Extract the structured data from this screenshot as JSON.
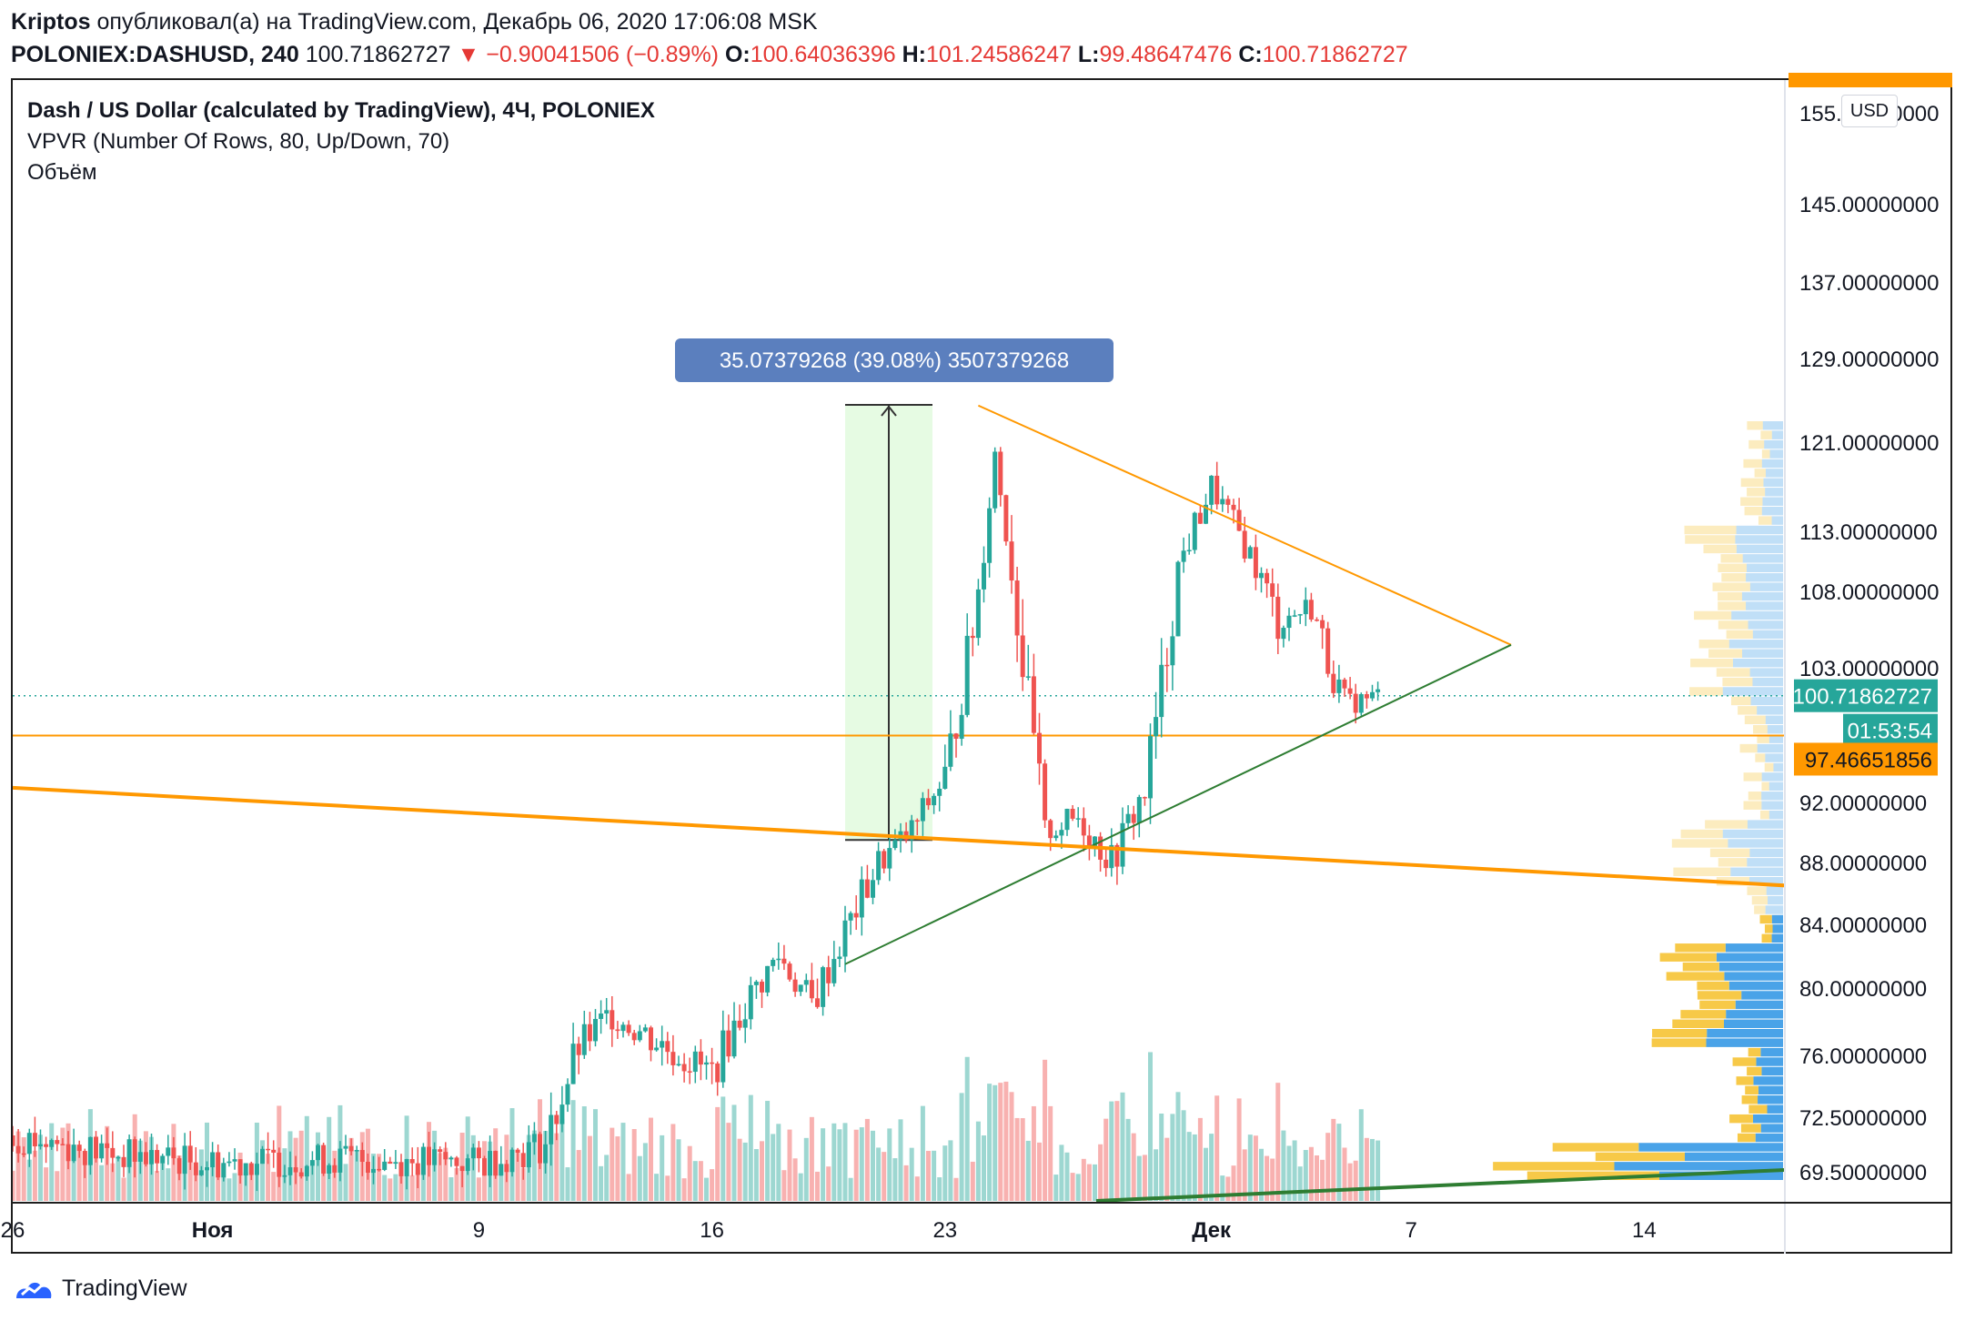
{
  "header": {
    "author": "Kriptos",
    "published_text": "опубликовал(а) на TradingView.com, Декабрь 06, 2020 17:06:08 MSK",
    "symbol": "POLONIEX:DASHUSD, 240",
    "price": "100.71862727",
    "change": "−0.90041506 (−0.89%)",
    "o_label": "O:",
    "o_value": "100.64036396",
    "h_label": "H:",
    "h_value": "101.24586247",
    "l_label": "L:",
    "l_value": "99.48647476",
    "c_label": "C:",
    "c_value": "100.71862727"
  },
  "legend": {
    "line1": "Dash / US Dollar (calculated by TradingView), 4Ч, POLONIEX",
    "line2": "VPVR (Number Of Rows, 80, Up/Down, 70)",
    "line3": "Объём"
  },
  "currency_button": "USD",
  "measure_label": "35.07379268 (39.08%) 3507379268",
  "price_badges": {
    "last_price": "100.71862727",
    "countdown": "01:53:54",
    "level": "97.46651856"
  },
  "footer": {
    "brand": "TradingView"
  },
  "colors": {
    "up": "#26a69a",
    "down": "#ef5350",
    "orange": "#ff9800",
    "green_line": "#2e7d32",
    "measure_fill": "#e6fbe3",
    "measure_label_bg": "#5b7fbe",
    "vp_up": "#4aa3e8",
    "vp_down": "#f7c948"
  },
  "chart_data": {
    "type": "candlestick",
    "title": "Dash / US Dollar (calculated by TradingView), 4Ч, POLONIEX",
    "y_axis_ticks": [
      "155.00000000",
      "145.00000000",
      "137.00000000",
      "129.00000000",
      "121.00000000",
      "113.00000000",
      "108.00000000",
      "103.00000000",
      "92.00000000",
      "88.00000000",
      "84.00000000",
      "80.00000000",
      "76.00000000",
      "72.50000000",
      "69.50000000"
    ],
    "x_axis_ticks": [
      "26",
      "Ноя",
      "9",
      "16",
      "23",
      "Дек",
      "7",
      "14"
    ],
    "ylim": [
      68.5,
      158
    ],
    "approx_price_path": [
      {
        "x": "Oct 26",
        "y": 71.5
      },
      {
        "x": "Oct 29",
        "y": 70.5
      },
      {
        "x": "Nov 1",
        "y": 70.0
      },
      {
        "x": "Nov 5",
        "y": 70.2
      },
      {
        "x": "Nov 9",
        "y": 70.0
      },
      {
        "x": "Nov 11",
        "y": 71.0
      },
      {
        "x": "Nov 12",
        "y": 76.5
      },
      {
        "x": "Nov 13",
        "y": 78.5
      },
      {
        "x": "Nov 15",
        "y": 76.0
      },
      {
        "x": "Nov 16",
        "y": 75.0
      },
      {
        "x": "Nov 17",
        "y": 79.0
      },
      {
        "x": "Nov 18",
        "y": 82.0
      },
      {
        "x": "Nov 19",
        "y": 79.0
      },
      {
        "x": "Nov 20",
        "y": 83.5
      },
      {
        "x": "Nov 21",
        "y": 88.0
      },
      {
        "x": "Nov 22",
        "y": 90.0
      },
      {
        "x": "Nov 23",
        "y": 94.0
      },
      {
        "x": "Nov 24",
        "y": 108.0
      },
      {
        "x": "Nov 24 late",
        "y": 120.0
      },
      {
        "x": "Nov 25",
        "y": 110.0
      },
      {
        "x": "Nov 26",
        "y": 90.0
      },
      {
        "x": "Nov 27",
        "y": 91.0
      },
      {
        "x": "Nov 28",
        "y": 88.0
      },
      {
        "x": "Nov 29",
        "y": 93.0
      },
      {
        "x": "Nov 30",
        "y": 110.0
      },
      {
        "x": "Dec 1",
        "y": 117.0
      },
      {
        "x": "Dec 2",
        "y": 112.0
      },
      {
        "x": "Dec 3",
        "y": 106.0
      },
      {
        "x": "Dec 4",
        "y": 107.0
      },
      {
        "x": "Dec 5",
        "y": 100.0
      },
      {
        "x": "Dec 6",
        "y": 100.72
      }
    ],
    "horizontal_level": 97.46651856,
    "last_price": 100.71862727,
    "measure": {
      "from": 89.5,
      "to": 124.57,
      "change": 35.07379268,
      "percent": 39.08
    },
    "trendlines": [
      {
        "name": "triangle-upper",
        "color": "#ff9800",
        "from": {
          "x": "Nov 24",
          "y": 124.5
        },
        "to": {
          "x": "Dec 10",
          "y": 104.5
        }
      },
      {
        "name": "triangle-lower",
        "color": "#2e7d32",
        "from": {
          "x": "Nov 20",
          "y": 81.5
        },
        "to": {
          "x": "Dec 10",
          "y": 104.5
        }
      },
      {
        "name": "long-resistance",
        "color": "#ff9800",
        "from": {
          "x": "Oct 26",
          "y": 93.2
        },
        "to": {
          "x": "Dec 20",
          "y": 86.3
        }
      }
    ],
    "volume_profile": {
      "rows": 80,
      "up_down": 70
    }
  }
}
